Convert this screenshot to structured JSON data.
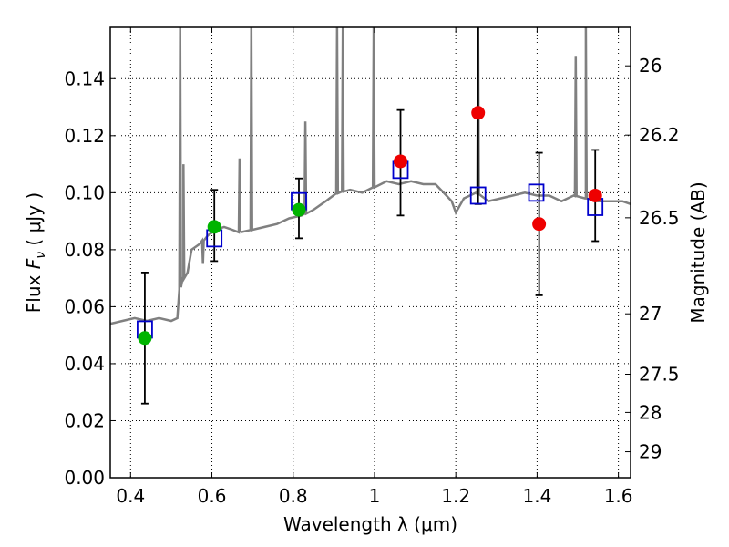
{
  "chart_data": {
    "type": "scatter",
    "xlabel": "Wavelength  λ (μm)",
    "ylabel": "Flux  F_ν  ( μJy )",
    "ylabel_parts": {
      "prefix": "Flux  ",
      "symbol": "F",
      "subscript": "ν",
      "suffix": "  ( μJy )"
    },
    "y2label": "Magnitude (AB)",
    "xlim": [
      0.35,
      1.63
    ],
    "ylim": [
      0.0,
      0.158
    ],
    "grid": true,
    "x_ticks": [
      0.4,
      0.6,
      0.8,
      1.0,
      1.2,
      1.4,
      1.6
    ],
    "x_tick_labels": [
      "0.4",
      "0.6",
      "0.8",
      "1",
      "1.2",
      "1.4",
      "1.6"
    ],
    "y_ticks": [
      0.0,
      0.02,
      0.04,
      0.06,
      0.08,
      0.1,
      0.12,
      0.14
    ],
    "y_tick_labels": [
      "0.00",
      "0.02",
      "0.04",
      "0.06",
      "0.08",
      "0.10",
      "0.12",
      "0.14"
    ],
    "y2_ticks": [
      {
        "label": "26",
        "flux": 0.1445
      },
      {
        "label": "26.2",
        "flux": 0.1202
      },
      {
        "label": "26.5",
        "flux": 0.0912
      },
      {
        "label": "27",
        "flux": 0.0575
      },
      {
        "label": "27.5",
        "flux": 0.0363
      },
      {
        "label": "28",
        "flux": 0.0229
      },
      {
        "label": "29",
        "flux": 0.0091
      }
    ],
    "series": [
      {
        "kind": "model_spectrum",
        "color": "#808080",
        "points": [
          [
            0.35,
            0.054
          ],
          [
            0.38,
            0.055
          ],
          [
            0.41,
            0.056
          ],
          [
            0.44,
            0.055
          ],
          [
            0.47,
            0.056
          ],
          [
            0.5,
            0.055
          ],
          [
            0.515,
            0.056
          ],
          [
            0.52,
            0.066
          ],
          [
            0.53,
            0.07
          ],
          [
            0.54,
            0.072
          ],
          [
            0.55,
            0.08
          ],
          [
            0.57,
            0.082
          ],
          [
            0.59,
            0.085
          ],
          [
            0.61,
            0.087
          ],
          [
            0.63,
            0.088
          ],
          [
            0.65,
            0.087
          ],
          [
            0.67,
            0.086
          ],
          [
            0.7,
            0.087
          ],
          [
            0.73,
            0.088
          ],
          [
            0.76,
            0.089
          ],
          [
            0.79,
            0.091
          ],
          [
            0.82,
            0.092
          ],
          [
            0.85,
            0.094
          ],
          [
            0.88,
            0.097
          ],
          [
            0.91,
            0.1
          ],
          [
            0.94,
            0.101
          ],
          [
            0.97,
            0.1
          ],
          [
            1.0,
            0.102
          ],
          [
            1.03,
            0.104
          ],
          [
            1.06,
            0.103
          ],
          [
            1.09,
            0.104
          ],
          [
            1.12,
            0.103
          ],
          [
            1.15,
            0.103
          ],
          [
            1.17,
            0.1
          ],
          [
            1.19,
            0.097
          ],
          [
            1.2,
            0.093
          ],
          [
            1.22,
            0.098
          ],
          [
            1.25,
            0.1
          ],
          [
            1.28,
            0.097
          ],
          [
            1.31,
            0.098
          ],
          [
            1.34,
            0.099
          ],
          [
            1.37,
            0.1
          ],
          [
            1.4,
            0.099
          ],
          [
            1.43,
            0.099
          ],
          [
            1.46,
            0.097
          ],
          [
            1.49,
            0.099
          ],
          [
            1.52,
            0.098
          ],
          [
            1.55,
            0.097
          ],
          [
            1.58,
            0.097
          ],
          [
            1.61,
            0.097
          ],
          [
            1.63,
            0.096
          ]
        ],
        "lines": [
          {
            "x": 0.522,
            "peak": 0.158
          },
          {
            "x": 0.53,
            "peak": 0.11
          },
          {
            "x": 0.578,
            "peak": 0.075
          },
          {
            "x": 0.668,
            "peak": 0.112
          },
          {
            "x": 0.697,
            "peak": 0.158
          },
          {
            "x": 0.83,
            "peak": 0.125
          },
          {
            "x": 0.908,
            "peak": 0.158
          },
          {
            "x": 0.922,
            "peak": 0.158
          },
          {
            "x": 0.998,
            "peak": 0.158
          },
          {
            "x": 1.255,
            "peak": 0.158
          },
          {
            "x": 1.495,
            "peak": 0.148
          },
          {
            "x": 1.52,
            "peak": 0.158
          }
        ]
      },
      {
        "kind": "model_bandpass_flux",
        "color": "#0000cc",
        "points": [
          {
            "x": 0.435,
            "y": 0.052
          },
          {
            "x": 0.606,
            "y": 0.084
          },
          {
            "x": 0.814,
            "y": 0.097
          },
          {
            "x": 1.064,
            "y": 0.108
          },
          {
            "x": 1.255,
            "y": 0.099
          },
          {
            "x": 1.398,
            "y": 0.1
          },
          {
            "x": 1.543,
            "y": 0.095
          }
        ]
      },
      {
        "kind": "observed_flux",
        "color": "#00b400",
        "points": [
          {
            "x": 0.435,
            "y": 0.049,
            "err_lo": 0.026,
            "err_hi": 0.072
          },
          {
            "x": 0.606,
            "y": 0.088,
            "err_lo": 0.076,
            "err_hi": 0.101
          },
          {
            "x": 0.814,
            "y": 0.094,
            "err_lo": 0.084,
            "err_hi": 0.105
          }
        ]
      },
      {
        "kind": "observed_flux",
        "color": "#ee0000",
        "points": [
          {
            "x": 1.064,
            "y": 0.111,
            "err_lo": 0.092,
            "err_hi": 0.129
          },
          {
            "x": 1.255,
            "y": 0.128,
            "err_lo": 0.096,
            "err_hi": 0.158
          },
          {
            "x": 1.405,
            "y": 0.089,
            "err_lo": 0.064,
            "err_hi": 0.114
          },
          {
            "x": 1.543,
            "y": 0.099,
            "err_lo": 0.083,
            "err_hi": 0.115
          }
        ]
      }
    ]
  }
}
